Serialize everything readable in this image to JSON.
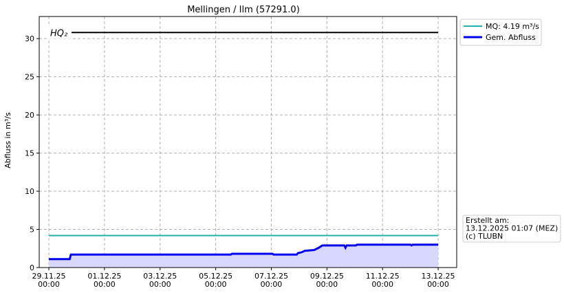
{
  "chart_data": {
    "type": "line",
    "title": "Mellingen / Ilm (57291.0)",
    "y_label": "Abfluss in m³/s",
    "x": [
      "29.11.25 00:00",
      "29.11.25 18:00",
      "29.11.25 19:00",
      "05.12.25 13:00",
      "05.12.25 14:00",
      "07.12.25 01:00",
      "07.12.25 02:00",
      "07.12.25 22:00",
      "07.12.25 23:00",
      "08.12.25 02:00",
      "08.12.25 05:00",
      "08.12.25 13:00",
      "08.12.25 17:00",
      "08.12.25 20:00",
      "09.12.25 15:00",
      "09.12.25 16:00",
      "09.12.25 17:00",
      "10.12.25 01:00",
      "10.12.25 02:00",
      "12.12.25 00:00",
      "12.12.25 01:00",
      "12.12.25 02:00",
      "13.12.25 00:00"
    ],
    "series": [
      {
        "name": "Gem. Abfluss",
        "color": "#0000ee",
        "fill": "#d8d8ff",
        "values": [
          1.1,
          1.1,
          1.7,
          1.7,
          1.8,
          1.8,
          1.7,
          1.7,
          1.9,
          2.0,
          2.2,
          2.3,
          2.6,
          2.9,
          2.9,
          2.6,
          2.9,
          2.9,
          3.0,
          3.0,
          2.9,
          3.0,
          3.0
        ]
      }
    ],
    "hlines": [
      {
        "name": "MQ: 4.19 m³/s",
        "value": 4.19,
        "color": "#20b2aa"
      }
    ],
    "annotation": {
      "text": "HQ₂",
      "value": 30.8,
      "color": "#000000"
    },
    "xlim": [
      "28.11.25 15:40",
      "13.12.25 16:00"
    ],
    "xticks": [
      {
        "value": "29.11.25 00:00",
        "label": [
          "29.11.25",
          "00:00"
        ]
      },
      {
        "value": "01.12.25 00:00",
        "label": [
          "01.12.25",
          "00:00"
        ]
      },
      {
        "value": "03.12.25 00:00",
        "label": [
          "03.12.25",
          "00:00"
        ]
      },
      {
        "value": "05.12.25 00:00",
        "label": [
          "05.12.25",
          "00:00"
        ]
      },
      {
        "value": "07.12.25 00:00",
        "label": [
          "07.12.25",
          "00:00"
        ]
      },
      {
        "value": "09.12.25 00:00",
        "label": [
          "09.12.25",
          "00:00"
        ]
      },
      {
        "value": "11.12.25 00:00",
        "label": [
          "11.12.25",
          "00:00"
        ]
      },
      {
        "value": "13.12.25 00:00",
        "label": [
          "13.12.25",
          "00:00"
        ]
      }
    ],
    "ylim": [
      0,
      32.9
    ],
    "yticks": [
      0,
      5,
      10,
      15,
      20,
      25,
      30
    ],
    "grid": true,
    "info": [
      "Erstellt am:",
      "13.12.2025 01:07 (MEZ)",
      "(c) TLUBN"
    ]
  }
}
